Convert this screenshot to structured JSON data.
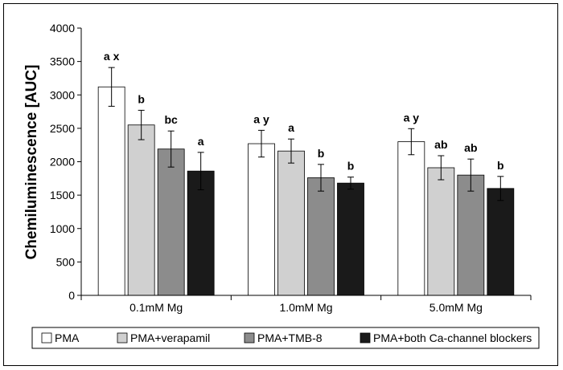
{
  "chart_data": {
    "type": "bar",
    "title": "",
    "xlabel": "",
    "ylabel": "Chemiluminescence [AUC]",
    "ylim": [
      0,
      4000
    ],
    "yticks": [
      0,
      500,
      1000,
      1500,
      2000,
      2500,
      3000,
      3500,
      4000
    ],
    "grid": false,
    "legend_position": "bottom",
    "categories": [
      "0.1mM Mg",
      "1.0mM Mg",
      "5.0mM Mg"
    ],
    "series": [
      {
        "name": "PMA",
        "color": "#ffffff",
        "values": [
          3120,
          2270,
          2300
        ],
        "errors": [
          290,
          200,
          195
        ],
        "labels": [
          "a x",
          "a y",
          "a y"
        ]
      },
      {
        "name": "PMA+verapamil",
        "color": "#d0d0d0",
        "values": [
          2550,
          2160,
          1910
        ],
        "errors": [
          220,
          180,
          180
        ],
        "labels": [
          "b",
          "a",
          "ab"
        ]
      },
      {
        "name": "PMA+TMB-8",
        "color": "#8c8c8c",
        "values": [
          2190,
          1760,
          1800
        ],
        "errors": [
          270,
          200,
          240
        ],
        "labels": [
          "bc",
          "b",
          "ab"
        ]
      },
      {
        "name": "PMA+both Ca-channel blockers",
        "color": "#1a1a1a",
        "values": [
          1860,
          1680,
          1600
        ],
        "errors": [
          280,
          90,
          180
        ],
        "labels": [
          "a",
          "b",
          "b"
        ]
      }
    ]
  }
}
